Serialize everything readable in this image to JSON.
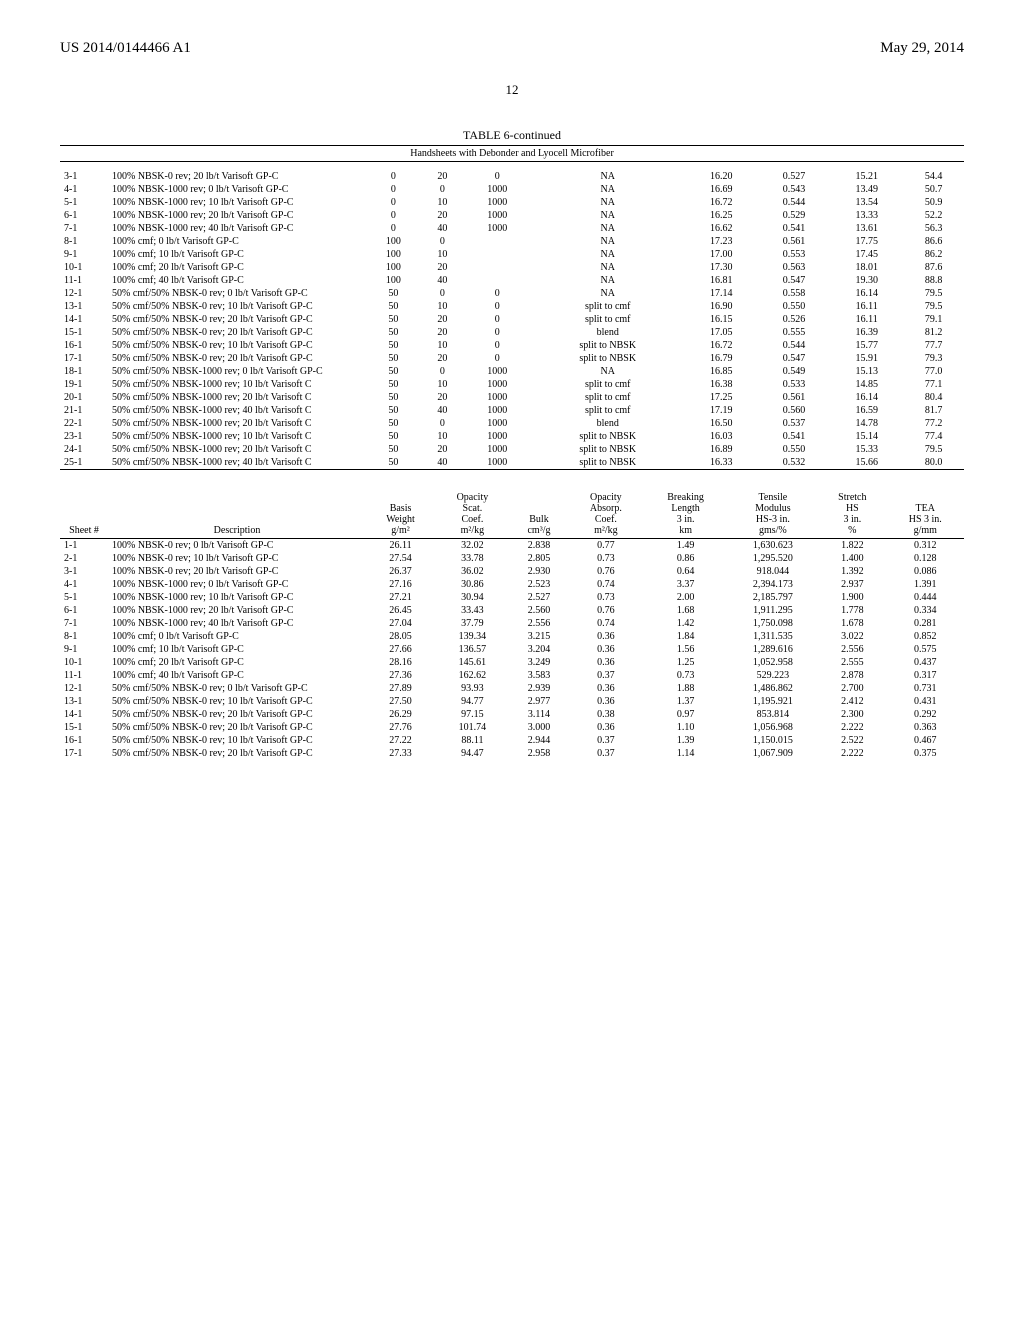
{
  "header": {
    "left": "US 2014/0144466 A1",
    "right": "May 29, 2014"
  },
  "pageNumber": "12",
  "table6": {
    "title": "TABLE 6-continued",
    "subtitle": "Handsheets with Debonder and Lyocell Microfiber",
    "rows": [
      {
        "sheet": "3-1",
        "desc": "100% NBSK-0 rev; 20 lb/t Varisoft GP-C",
        "c3": "0",
        "c4": "20",
        "c5": "0",
        "c6": "NA",
        "c7": "16.20",
        "c8": "0.527",
        "c9": "15.21",
        "c10": "54.4"
      },
      {
        "sheet": "4-1",
        "desc": "100% NBSK-1000 rev; 0 lb/t Varisoft GP-C",
        "c3": "0",
        "c4": "0",
        "c5": "1000",
        "c6": "NA",
        "c7": "16.69",
        "c8": "0.543",
        "c9": "13.49",
        "c10": "50.7"
      },
      {
        "sheet": "5-1",
        "desc": "100% NBSK-1000 rev; 10 lb/t Varisoft GP-C",
        "c3": "0",
        "c4": "10",
        "c5": "1000",
        "c6": "NA",
        "c7": "16.72",
        "c8": "0.544",
        "c9": "13.54",
        "c10": "50.9"
      },
      {
        "sheet": "6-1",
        "desc": "100% NBSK-1000 rev; 20 lb/t Varisoft GP-C",
        "c3": "0",
        "c4": "20",
        "c5": "1000",
        "c6": "NA",
        "c7": "16.25",
        "c8": "0.529",
        "c9": "13.33",
        "c10": "52.2"
      },
      {
        "sheet": "7-1",
        "desc": "100% NBSK-1000 rev; 40 lb/t Varisoft GP-C",
        "c3": "0",
        "c4": "40",
        "c5": "1000",
        "c6": "NA",
        "c7": "16.62",
        "c8": "0.541",
        "c9": "13.61",
        "c10": "56.3"
      },
      {
        "sheet": "8-1",
        "desc": "100% cmf; 0 lb/t Varisoft GP-C",
        "c3": "100",
        "c4": "0",
        "c5": "",
        "c6": "NA",
        "c7": "17.23",
        "c8": "0.561",
        "c9": "17.75",
        "c10": "86.6"
      },
      {
        "sheet": "9-1",
        "desc": "100% cmf; 10 lb/t Varisoft GP-C",
        "c3": "100",
        "c4": "10",
        "c5": "",
        "c6": "NA",
        "c7": "17.00",
        "c8": "0.553",
        "c9": "17.45",
        "c10": "86.2"
      },
      {
        "sheet": "10-1",
        "desc": "100% cmf; 20 lb/t Varisoft GP-C",
        "c3": "100",
        "c4": "20",
        "c5": "",
        "c6": "NA",
        "c7": "17.30",
        "c8": "0.563",
        "c9": "18.01",
        "c10": "87.6"
      },
      {
        "sheet": "11-1",
        "desc": "100% cmf; 40 lb/t Varisoft GP-C",
        "c3": "100",
        "c4": "40",
        "c5": "",
        "c6": "NA",
        "c7": "16.81",
        "c8": "0.547",
        "c9": "19.30",
        "c10": "88.8"
      },
      {
        "sheet": "12-1",
        "desc": "50% cmf/50% NBSK-0 rev; 0 lb/t Varisoft GP-C",
        "c3": "50",
        "c4": "0",
        "c5": "0",
        "c6": "NA",
        "c7": "17.14",
        "c8": "0.558",
        "c9": "16.14",
        "c10": "79.5"
      },
      {
        "sheet": "13-1",
        "desc": "50% cmf/50% NBSK-0 rev; 10 lb/t Varisoft GP-C",
        "c3": "50",
        "c4": "10",
        "c5": "0",
        "c6": "split to cmf",
        "c7": "16.90",
        "c8": "0.550",
        "c9": "16.11",
        "c10": "79.5"
      },
      {
        "sheet": "14-1",
        "desc": "50% cmf/50% NBSK-0 rev; 20 lb/t Varisoft GP-C",
        "c3": "50",
        "c4": "20",
        "c5": "0",
        "c6": "split to cmf",
        "c7": "16.15",
        "c8": "0.526",
        "c9": "16.11",
        "c10": "79.1"
      },
      {
        "sheet": "15-1",
        "desc": "50% cmf/50% NBSK-0 rev; 20 lb/t Varisoft GP-C",
        "c3": "50",
        "c4": "20",
        "c5": "0",
        "c6": "blend",
        "c7": "17.05",
        "c8": "0.555",
        "c9": "16.39",
        "c10": "81.2"
      },
      {
        "sheet": "16-1",
        "desc": "50% cmf/50% NBSK-0 rev; 10 lb/t Varisoft GP-C",
        "c3": "50",
        "c4": "10",
        "c5": "0",
        "c6": "split to NBSK",
        "c7": "16.72",
        "c8": "0.544",
        "c9": "15.77",
        "c10": "77.7"
      },
      {
        "sheet": "17-1",
        "desc": "50% cmf/50% NBSK-0 rev; 20 lb/t Varisoft GP-C",
        "c3": "50",
        "c4": "20",
        "c5": "0",
        "c6": "split to NBSK",
        "c7": "16.79",
        "c8": "0.547",
        "c9": "15.91",
        "c10": "79.3"
      },
      {
        "sheet": "18-1",
        "desc": "50% cmf/50% NBSK-1000 rev; 0 lb/t Varisoft GP-C",
        "c3": "50",
        "c4": "0",
        "c5": "1000",
        "c6": "NA",
        "c7": "16.85",
        "c8": "0.549",
        "c9": "15.13",
        "c10": "77.0"
      },
      {
        "sheet": "19-1",
        "desc": "50% cmf/50% NBSK-1000 rev; 10 lb/t Varisoft C",
        "c3": "50",
        "c4": "10",
        "c5": "1000",
        "c6": "split to cmf",
        "c7": "16.38",
        "c8": "0.533",
        "c9": "14.85",
        "c10": "77.1"
      },
      {
        "sheet": "20-1",
        "desc": "50% cmf/50% NBSK-1000 rev; 20 lb/t Varisoft C",
        "c3": "50",
        "c4": "20",
        "c5": "1000",
        "c6": "split to cmf",
        "c7": "17.25",
        "c8": "0.561",
        "c9": "16.14",
        "c10": "80.4"
      },
      {
        "sheet": "21-1",
        "desc": "50% cmf/50% NBSK-1000 rev; 40 lb/t Varisoft C",
        "c3": "50",
        "c4": "40",
        "c5": "1000",
        "c6": "split to cmf",
        "c7": "17.19",
        "c8": "0.560",
        "c9": "16.59",
        "c10": "81.7"
      },
      {
        "sheet": "22-1",
        "desc": "50% cmf/50% NBSK-1000 rev; 20 lb/t Varisoft C",
        "c3": "50",
        "c4": "0",
        "c5": "1000",
        "c6": "blend",
        "c7": "16.50",
        "c8": "0.537",
        "c9": "14.78",
        "c10": "77.2"
      },
      {
        "sheet": "23-1",
        "desc": "50% cmf/50% NBSK-1000 rev; 10 lb/t Varisoft C",
        "c3": "50",
        "c4": "10",
        "c5": "1000",
        "c6": "split to NBSK",
        "c7": "16.03",
        "c8": "0.541",
        "c9": "15.14",
        "c10": "77.4"
      },
      {
        "sheet": "24-1",
        "desc": "50% cmf/50% NBSK-1000 rev; 20 lb/t Varisoft C",
        "c3": "50",
        "c4": "20",
        "c5": "1000",
        "c6": "split to NBSK",
        "c7": "16.89",
        "c8": "0.550",
        "c9": "15.33",
        "c10": "79.5"
      },
      {
        "sheet": "25-1",
        "desc": "50% cmf/50% NBSK-1000 rev; 40 lb/t Varisoft C",
        "c3": "50",
        "c4": "40",
        "c5": "1000",
        "c6": "split to NBSK",
        "c7": "16.33",
        "c8": "0.532",
        "c9": "15.66",
        "c10": "80.0"
      }
    ]
  },
  "table7": {
    "headers": {
      "sheet": "Sheet #",
      "desc": "Description",
      "h1": "Basis\nWeight\ng/m²",
      "h2": "Opacity\nScat.\nCoef.\nm²/kg",
      "h3": "Bulk\ncm³/g",
      "h4": "Opacity\nAbsorp.\nCoef.\nm²/kg",
      "h5": "Breaking\nLength\n3 in.\nkm",
      "h6": "Tensile\nModulus\nHS-3 in.\ngms/%",
      "h7": "Stretch\nHS\n3 in.\n%",
      "h8": "TEA\nHS 3 in.\ng/mm"
    },
    "rows": [
      {
        "sheet": "1-1",
        "desc": "100% NBSK-0 rev; 0 lb/t Varisoft GP-C",
        "c1": "26.11",
        "c2": "32.02",
        "c3": "2.838",
        "c4": "0.77",
        "c5": "1.49",
        "c6": "1,630.623",
        "c7": "1.822",
        "c8": "0.312"
      },
      {
        "sheet": "2-1",
        "desc": "100% NBSK-0 rev; 10 lb/t Varisoft GP-C",
        "c1": "27.54",
        "c2": "33.78",
        "c3": "2.805",
        "c4": "0.73",
        "c5": "0.86",
        "c6": "1,295.520",
        "c7": "1.400",
        "c8": "0.128"
      },
      {
        "sheet": "3-1",
        "desc": "100% NBSK-0 rev; 20 lb/t Varisoft GP-C",
        "c1": "26.37",
        "c2": "36.02",
        "c3": "2.930",
        "c4": "0.76",
        "c5": "0.64",
        "c6": "918.044",
        "c7": "1.392",
        "c8": "0.086"
      },
      {
        "sheet": "4-1",
        "desc": "100% NBSK-1000 rev; 0 lb/t Varisoft GP-C",
        "c1": "27.16",
        "c2": "30.86",
        "c3": "2.523",
        "c4": "0.74",
        "c5": "3.37",
        "c6": "2,394.173",
        "c7": "2.937",
        "c8": "1.391"
      },
      {
        "sheet": "5-1",
        "desc": "100% NBSK-1000 rev; 10 lb/t Varisoft GP-C",
        "c1": "27.21",
        "c2": "30.94",
        "c3": "2.527",
        "c4": "0.73",
        "c5": "2.00",
        "c6": "2,185.797",
        "c7": "1.900",
        "c8": "0.444"
      },
      {
        "sheet": "6-1",
        "desc": "100% NBSK-1000 rev; 20 lb/t Varisoft GP-C",
        "c1": "26.45",
        "c2": "33.43",
        "c3": "2.560",
        "c4": "0.76",
        "c5": "1.68",
        "c6": "1,911.295",
        "c7": "1.778",
        "c8": "0.334"
      },
      {
        "sheet": "7-1",
        "desc": "100% NBSK-1000 rev; 40 lb/t Varisoft GP-C",
        "c1": "27.04",
        "c2": "37.79",
        "c3": "2.556",
        "c4": "0.74",
        "c5": "1.42",
        "c6": "1,750.098",
        "c7": "1.678",
        "c8": "0.281"
      },
      {
        "sheet": "8-1",
        "desc": "100% cmf; 0 lb/t Varisoft GP-C",
        "c1": "28.05",
        "c2": "139.34",
        "c3": "3.215",
        "c4": "0.36",
        "c5": "1.84",
        "c6": "1,311.535",
        "c7": "3.022",
        "c8": "0.852"
      },
      {
        "sheet": "9-1",
        "desc": "100% cmf; 10 lb/t Varisoft GP-C",
        "c1": "27.66",
        "c2": "136.57",
        "c3": "3.204",
        "c4": "0.36",
        "c5": "1.56",
        "c6": "1,289.616",
        "c7": "2.556",
        "c8": "0.575"
      },
      {
        "sheet": "10-1",
        "desc": "100% cmf; 20 lb/t Varisoft GP-C",
        "c1": "28.16",
        "c2": "145.61",
        "c3": "3.249",
        "c4": "0.36",
        "c5": "1.25",
        "c6": "1,052.958",
        "c7": "2.555",
        "c8": "0.437"
      },
      {
        "sheet": "11-1",
        "desc": "100% cmf; 40 lb/t Varisoft GP-C",
        "c1": "27.36",
        "c2": "162.62",
        "c3": "3.583",
        "c4": "0.37",
        "c5": "0.73",
        "c6": "529.223",
        "c7": "2.878",
        "c8": "0.317"
      },
      {
        "sheet": "12-1",
        "desc": "50% cmf/50% NBSK-0 rev; 0 lb/t Varisoft GP-C",
        "c1": "27.89",
        "c2": "93.93",
        "c3": "2.939",
        "c4": "0.36",
        "c5": "1.88",
        "c6": "1,486.862",
        "c7": "2.700",
        "c8": "0.731"
      },
      {
        "sheet": "13-1",
        "desc": "50% cmf/50% NBSK-0 rev; 10 lb/t Varisoft GP-C",
        "c1": "27.50",
        "c2": "94.77",
        "c3": "2.977",
        "c4": "0.36",
        "c5": "1.37",
        "c6": "1,195.921",
        "c7": "2.412",
        "c8": "0.431"
      },
      {
        "sheet": "14-1",
        "desc": "50% cmf/50% NBSK-0 rev; 20 lb/t Varisoft GP-C",
        "c1": "26.29",
        "c2": "97.15",
        "c3": "3.114",
        "c4": "0.38",
        "c5": "0.97",
        "c6": "853.814",
        "c7": "2.300",
        "c8": "0.292"
      },
      {
        "sheet": "15-1",
        "desc": "50% cmf/50% NBSK-0 rev; 20 lb/t Varisoft GP-C",
        "c1": "27.76",
        "c2": "101.74",
        "c3": "3.000",
        "c4": "0.36",
        "c5": "1.10",
        "c6": "1,056.968",
        "c7": "2.222",
        "c8": "0.363"
      },
      {
        "sheet": "16-1",
        "desc": "50% cmf/50% NBSK-0 rev; 10 lb/t Varisoft GP-C",
        "c1": "27.22",
        "c2": "88.11",
        "c3": "2.944",
        "c4": "0.37",
        "c5": "1.39",
        "c6": "1,150.015",
        "c7": "2.522",
        "c8": "0.467"
      },
      {
        "sheet": "17-1",
        "desc": "50% cmf/50% NBSK-0 rev; 20 lb/t Varisoft GP-C",
        "c1": "27.33",
        "c2": "94.47",
        "c3": "2.958",
        "c4": "0.37",
        "c5": "1.14",
        "c6": "1,067.909",
        "c7": "2.222",
        "c8": "0.375"
      }
    ]
  }
}
